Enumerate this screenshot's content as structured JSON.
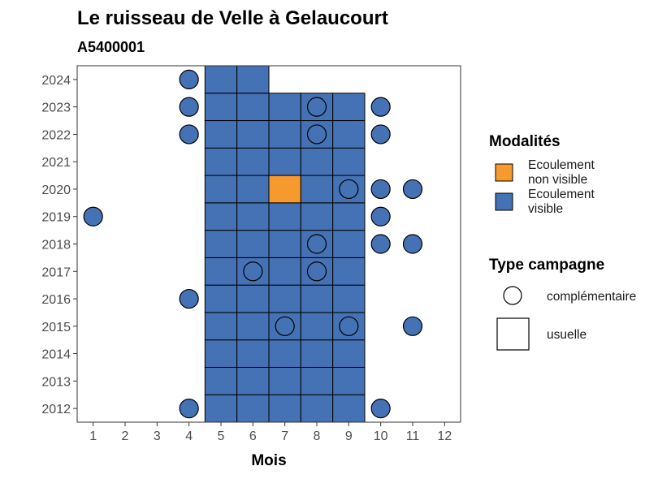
{
  "chart_data": {
    "type": "heatmap",
    "title": "Le ruisseau de Velle à Gelaucourt",
    "subtitle": "A5400001",
    "xlabel": "Mois",
    "ylabel": "",
    "x_ticks": [
      1,
      2,
      3,
      4,
      5,
      6,
      7,
      8,
      9,
      10,
      11,
      12
    ],
    "y_ticks": [
      2012,
      2013,
      2014,
      2015,
      2016,
      2017,
      2018,
      2019,
      2020,
      2021,
      2022,
      2023,
      2024
    ],
    "xlim": [
      0.5,
      12.5
    ],
    "ylim": [
      2011.5,
      2024.5
    ],
    "grid": false,
    "legend_position": "right",
    "modalites": [
      {
        "label": "Ecoulement non visible",
        "lines": [
          "Ecoulement",
          "non visible"
        ],
        "color": "#F79A2E"
      },
      {
        "label": "Ecoulement visible",
        "lines": [
          "Ecoulement",
          "visible"
        ],
        "color": "#4472B4"
      }
    ],
    "campaign_types": [
      "complémentaire",
      "usuelle"
    ],
    "usuelle": [
      {
        "year": 2012,
        "months": [
          5,
          6,
          7,
          8,
          9
        ],
        "non_visible": []
      },
      {
        "year": 2013,
        "months": [
          5,
          6,
          7,
          8,
          9
        ],
        "non_visible": []
      },
      {
        "year": 2014,
        "months": [
          5,
          6,
          7,
          8,
          9
        ],
        "non_visible": []
      },
      {
        "year": 2015,
        "months": [
          5,
          6,
          7,
          8,
          9
        ],
        "non_visible": []
      },
      {
        "year": 2016,
        "months": [
          5,
          6,
          7,
          8,
          9
        ],
        "non_visible": []
      },
      {
        "year": 2017,
        "months": [
          5,
          6,
          7,
          8,
          9
        ],
        "non_visible": []
      },
      {
        "year": 2018,
        "months": [
          5,
          6,
          7,
          8,
          9
        ],
        "non_visible": []
      },
      {
        "year": 2019,
        "months": [
          5,
          6,
          7,
          8,
          9
        ],
        "non_visible": []
      },
      {
        "year": 2020,
        "months": [
          5,
          6,
          7,
          8,
          9
        ],
        "non_visible": [
          7
        ]
      },
      {
        "year": 2021,
        "months": [
          5,
          6,
          7,
          8,
          9
        ],
        "non_visible": []
      },
      {
        "year": 2022,
        "months": [
          5,
          6,
          7,
          8,
          9
        ],
        "non_visible": []
      },
      {
        "year": 2023,
        "months": [
          5,
          6,
          7,
          8,
          9
        ],
        "non_visible": []
      },
      {
        "year": 2024,
        "months": [
          5,
          6
        ],
        "non_visible": []
      }
    ],
    "complementaire": [
      {
        "year": 2012,
        "month": 4,
        "modalite": "visible"
      },
      {
        "year": 2012,
        "month": 10,
        "modalite": "visible"
      },
      {
        "year": 2015,
        "month": 7,
        "modalite": "visible"
      },
      {
        "year": 2015,
        "month": 9,
        "modalite": "visible"
      },
      {
        "year": 2015,
        "month": 11,
        "modalite": "visible"
      },
      {
        "year": 2016,
        "month": 4,
        "modalite": "visible"
      },
      {
        "year": 2017,
        "month": 6,
        "modalite": "visible"
      },
      {
        "year": 2017,
        "month": 8,
        "modalite": "visible"
      },
      {
        "year": 2018,
        "month": 8,
        "modalite": "visible"
      },
      {
        "year": 2018,
        "month": 10,
        "modalite": "visible"
      },
      {
        "year": 2018,
        "month": 11,
        "modalite": "visible"
      },
      {
        "year": 2019,
        "month": 1,
        "modalite": "visible"
      },
      {
        "year": 2019,
        "month": 10,
        "modalite": "visible"
      },
      {
        "year": 2020,
        "month": 9,
        "modalite": "visible"
      },
      {
        "year": 2020,
        "month": 10,
        "modalite": "visible"
      },
      {
        "year": 2020,
        "month": 11,
        "modalite": "visible"
      },
      {
        "year": 2022,
        "month": 4,
        "modalite": "visible"
      },
      {
        "year": 2022,
        "month": 8,
        "modalite": "visible"
      },
      {
        "year": 2022,
        "month": 10,
        "modalite": "visible"
      },
      {
        "year": 2023,
        "month": 4,
        "modalite": "visible"
      },
      {
        "year": 2023,
        "month": 8,
        "modalite": "visible"
      },
      {
        "year": 2023,
        "month": 10,
        "modalite": "visible"
      },
      {
        "year": 2024,
        "month": 4,
        "modalite": "visible"
      }
    ]
  },
  "legend": {
    "modalites_title": "Modalités",
    "campaign_title": "Type campagne"
  }
}
